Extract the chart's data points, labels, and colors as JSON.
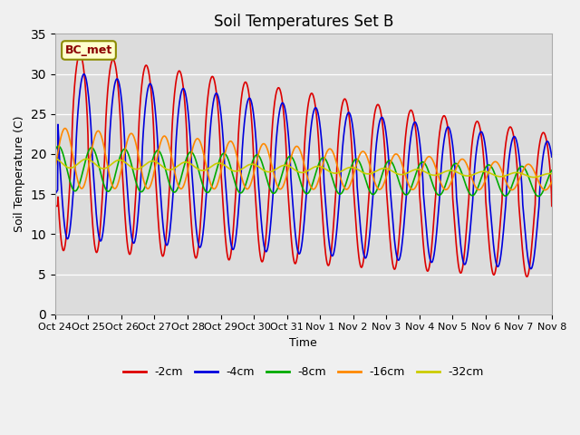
{
  "title": "Soil Temperatures Set B",
  "xlabel": "Time",
  "ylabel": "Soil Temperature (C)",
  "ylim": [
    0,
    35
  ],
  "yticks": [
    0,
    5,
    10,
    15,
    20,
    25,
    30,
    35
  ],
  "annotation_text": "BC_met",
  "line_colors": {
    "-2cm": "#dd0000",
    "-4cm": "#0000dd",
    "-8cm": "#00aa00",
    "-16cm": "#ff8800",
    "-32cm": "#cccc00"
  },
  "x_tick_labels": [
    "Oct 24",
    "Oct 25",
    "Oct 26",
    "Oct 27",
    "Oct 28",
    "Oct 29",
    "Oct 30",
    "Oct 31",
    "Nov 1",
    "Nov 2",
    "Nov 3",
    "Nov 4",
    "Nov 5",
    "Nov 6",
    "Nov 7",
    "Nov 8"
  ],
  "n_days": 15,
  "title_fontsize": 12,
  "label_fontsize": 9,
  "tick_fontsize": 8
}
